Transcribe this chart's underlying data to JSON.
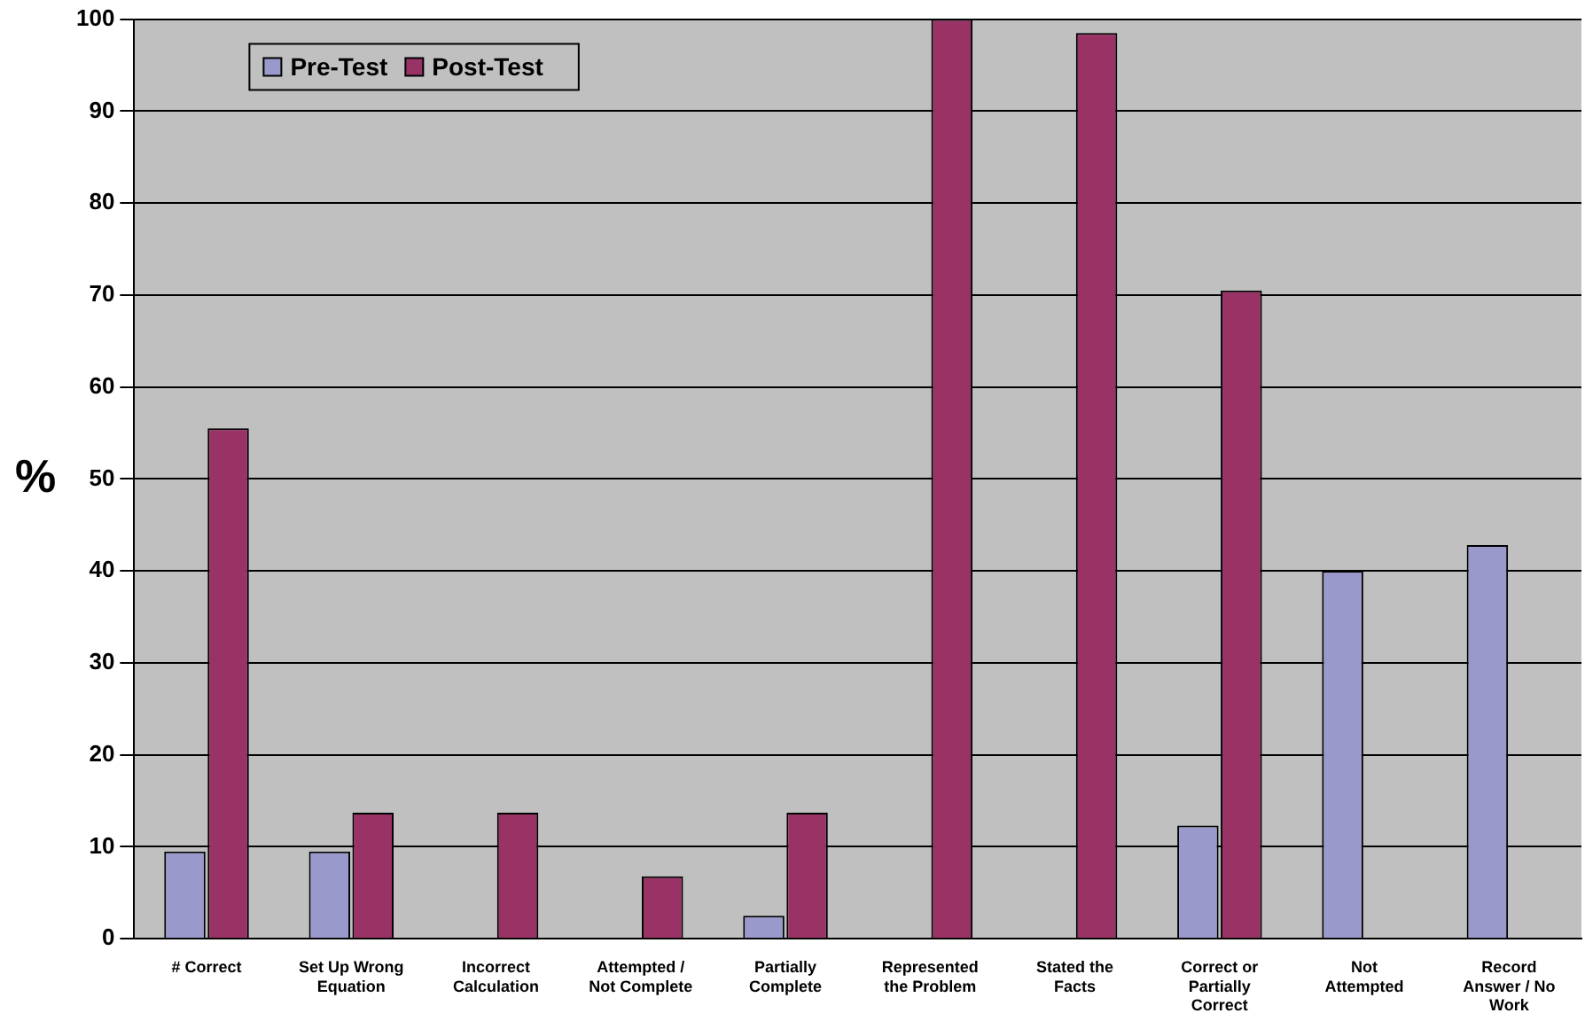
{
  "chart_data": {
    "type": "bar",
    "ylabel": "%",
    "categories": [
      "# Correct",
      "Set Up Wrong Equation",
      "Incorrect Calculation",
      "Attempted / Not Complete",
      "Partially Complete",
      "Represented the Problem",
      "Stated the Facts",
      "Correct or Partially Correct",
      "Not Attempted",
      "Record Answer / No Work"
    ],
    "series": [
      {
        "name": "Pre-Test",
        "color": "#9999cc",
        "values": [
          9.5,
          9.5,
          0,
          0,
          2.5,
          0,
          0,
          12.3,
          40,
          42.8
        ]
      },
      {
        "name": "Post-Test",
        "color": "#993366",
        "values": [
          55.5,
          13.7,
          13.7,
          6.8,
          13.7,
          100,
          98.5,
          70.5,
          0,
          0
        ]
      }
    ],
    "ylim": [
      0,
      100
    ],
    "yticks": [
      0,
      10,
      20,
      30,
      40,
      50,
      60,
      70,
      80,
      90,
      100
    ],
    "grid": "y",
    "legend": "top left"
  }
}
